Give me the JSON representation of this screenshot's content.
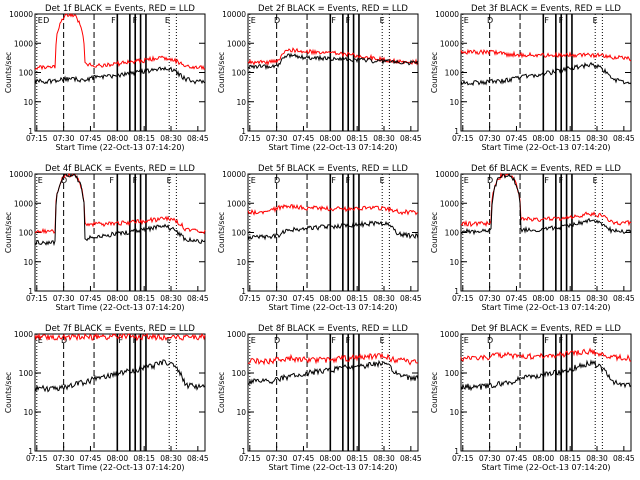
{
  "figure": {
    "ylabel": "Counts/sec",
    "xlabel": "Start Time (22-Oct-13 07:14:20)",
    "x_ticks": [
      "07:15",
      "07:30",
      "07:45",
      "08:00",
      "08:15",
      "08:30",
      "08:45"
    ],
    "y_ticks": [
      "1",
      "10",
      "100",
      "1000",
      "10000"
    ],
    "colors": {
      "events": "#000000",
      "lld": "#ff0000",
      "axes": "#000000"
    }
  },
  "chart_data": [
    {
      "type": "line",
      "title": "Det 1f BLACK = Events, RED = LLD",
      "markers": [
        {
          "label": "E",
          "x": "07:15"
        },
        {
          "label": "D",
          "x": "07:18"
        },
        {
          "label": "F",
          "x": "07:56"
        },
        {
          "label": "F",
          "x": "08:08"
        },
        {
          "label": "E",
          "x": "08:26"
        }
      ],
      "ylim": [
        1,
        10000
      ],
      "xlim": [
        "07:14",
        "08:49"
      ],
      "yscale": "log",
      "events_level": [
        50,
        50,
        50,
        60,
        60,
        55,
        70,
        75,
        80,
        90,
        100,
        110,
        130,
        150,
        110,
        60,
        50,
        48
      ],
      "lld_level": [
        150,
        150,
        150,
        9000,
        9000,
        200,
        170,
        180,
        200,
        220,
        240,
        260,
        300,
        320,
        270,
        160,
        150,
        145
      ]
    },
    {
      "type": "line",
      "title": "Det 2f BLACK = Events, RED = LLD",
      "markers": [
        {
          "label": "E",
          "x": "07:15"
        },
        {
          "label": "D",
          "x": "07:28"
        },
        {
          "label": "F",
          "x": "08:00"
        },
        {
          "label": "F",
          "x": "08:08"
        },
        {
          "label": "E",
          "x": "08:27"
        }
      ],
      "ylim": [
        1,
        10000
      ],
      "xlim": [
        "07:14",
        "08:49"
      ],
      "yscale": "log",
      "events_level": [
        160,
        160,
        160,
        180,
        380,
        350,
        330,
        320,
        300,
        290,
        280,
        270,
        260,
        250,
        240,
        230,
        220,
        210
      ],
      "lld_level": [
        230,
        230,
        230,
        250,
        600,
        560,
        520,
        500,
        480,
        460,
        420,
        380,
        340,
        300,
        260,
        240,
        230,
        230
      ]
    },
    {
      "type": "line",
      "title": "Det 3f BLACK = Events, RED = LLD",
      "markers": [
        {
          "label": "E",
          "x": "07:15"
        },
        {
          "label": "D",
          "x": "07:28"
        },
        {
          "label": "F",
          "x": "08:00"
        },
        {
          "label": "F",
          "x": "08:08"
        },
        {
          "label": "E",
          "x": "08:27"
        }
      ],
      "ylim": [
        1,
        10000
      ],
      "xlim": [
        "07:14",
        "08:49"
      ],
      "yscale": "log",
      "events_level": [
        45,
        45,
        45,
        50,
        50,
        60,
        70,
        80,
        90,
        100,
        120,
        140,
        160,
        200,
        140,
        60,
        50,
        48
      ],
      "lld_level": [
        500,
        500,
        500,
        500,
        450,
        420,
        410,
        400,
        400,
        400,
        400,
        400,
        400,
        400,
        380,
        350,
        320,
        300
      ]
    },
    {
      "type": "line",
      "title": "Det 4f BLACK = Events, RED = LLD",
      "markers": [
        {
          "label": "E",
          "x": "07:15"
        },
        {
          "label": "D",
          "x": "07:28"
        },
        {
          "label": "F",
          "x": "07:55"
        },
        {
          "label": "F",
          "x": "08:08"
        },
        {
          "label": "E",
          "x": "08:27"
        }
      ],
      "ylim": [
        1,
        10000
      ],
      "xlim": [
        "07:14",
        "08:49"
      ],
      "yscale": "log",
      "events_level": [
        45,
        45,
        45,
        9000,
        9000,
        60,
        70,
        80,
        90,
        100,
        110,
        130,
        150,
        170,
        120,
        60,
        50,
        48
      ],
      "lld_level": [
        110,
        110,
        110,
        9000,
        9000,
        200,
        190,
        200,
        210,
        220,
        230,
        250,
        280,
        300,
        260,
        140,
        120,
        110
      ]
    },
    {
      "type": "line",
      "title": "Det 5f BLACK = Events, RED = LLD",
      "markers": [
        {
          "label": "E",
          "x": "07:15"
        },
        {
          "label": "D",
          "x": "07:28"
        },
        {
          "label": "F",
          "x": "08:00"
        },
        {
          "label": "F",
          "x": "08:08"
        },
        {
          "label": "E",
          "x": "08:27"
        }
      ],
      "ylim": [
        1,
        10000
      ],
      "xlim": [
        "07:14",
        "08:49"
      ],
      "yscale": "log",
      "events_level": [
        70,
        70,
        70,
        80,
        120,
        130,
        140,
        150,
        160,
        170,
        180,
        190,
        200,
        220,
        190,
        90,
        80,
        75
      ],
      "lld_level": [
        500,
        500,
        500,
        700,
        800,
        760,
        700,
        680,
        660,
        650,
        650,
        660,
        680,
        700,
        650,
        520,
        500,
        480
      ]
    },
    {
      "type": "line",
      "title": "Det 6f BLACK = Events, RED = LLD",
      "markers": [
        {
          "label": "E",
          "x": "07:15"
        },
        {
          "label": "D",
          "x": "07:28"
        },
        {
          "label": "F",
          "x": "08:00"
        },
        {
          "label": "F",
          "x": "08:08"
        },
        {
          "label": "E",
          "x": "08:27"
        }
      ],
      "ylim": [
        1,
        10000
      ],
      "xlim": [
        "07:14",
        "08:49"
      ],
      "yscale": "log",
      "events_level": [
        110,
        110,
        110,
        120,
        9000,
        9000,
        130,
        120,
        130,
        140,
        150,
        180,
        220,
        260,
        200,
        120,
        110,
        110
      ],
      "lld_level": [
        200,
        200,
        200,
        220,
        9000,
        9000,
        300,
        290,
        290,
        290,
        300,
        320,
        400,
        450,
        380,
        230,
        220,
        220
      ]
    },
    {
      "type": "line",
      "title": "Det 7f BLACK = Events, RED = LLD",
      "markers": [
        {
          "label": "E",
          "x": "07:15"
        },
        {
          "label": "D",
          "x": "07:28"
        },
        {
          "label": "F",
          "x": "08:00"
        },
        {
          "label": "F",
          "x": "08:08"
        },
        {
          "label": "E",
          "x": "08:27"
        }
      ],
      "ylim": [
        1,
        1000
      ],
      "xlim": [
        "07:14",
        "08:49"
      ],
      "yscale": "log",
      "events_level": [
        40,
        40,
        40,
        45,
        50,
        60,
        70,
        80,
        90,
        110,
        120,
        140,
        160,
        200,
        150,
        50,
        45,
        42
      ],
      "lld_level": [
        850,
        850,
        850,
        850,
        850,
        850,
        850,
        850,
        850,
        850,
        850,
        850,
        850,
        850,
        850,
        850,
        850,
        850
      ]
    },
    {
      "type": "line",
      "title": "Det 8f BLACK = Events, RED = LLD",
      "markers": [
        {
          "label": "E",
          "x": "07:15"
        },
        {
          "label": "D",
          "x": "07:28"
        },
        {
          "label": "F",
          "x": "08:00"
        },
        {
          "label": "F",
          "x": "08:08"
        },
        {
          "label": "E",
          "x": "08:27"
        }
      ],
      "ylim": [
        1,
        1000
      ],
      "xlim": [
        "07:14",
        "08:49"
      ],
      "yscale": "log",
      "events_level": [
        60,
        60,
        60,
        70,
        80,
        90,
        100,
        110,
        120,
        130,
        140,
        150,
        160,
        180,
        150,
        90,
        80,
        75
      ],
      "lld_level": [
        200,
        200,
        200,
        220,
        250,
        230,
        220,
        220,
        220,
        230,
        240,
        250,
        260,
        280,
        250,
        210,
        200,
        200
      ]
    },
    {
      "type": "line",
      "title": "Det 9f BLACK = Events, RED = LLD",
      "markers": [
        {
          "label": "E",
          "x": "07:15"
        },
        {
          "label": "D",
          "x": "07:28"
        },
        {
          "label": "F",
          "x": "08:00"
        },
        {
          "label": "F",
          "x": "08:08"
        },
        {
          "label": "E",
          "x": "08:27"
        }
      ],
      "ylim": [
        1,
        1000
      ],
      "xlim": [
        "07:14",
        "08:49"
      ],
      "yscale": "log",
      "events_level": [
        45,
        45,
        45,
        50,
        55,
        60,
        70,
        80,
        90,
        100,
        110,
        130,
        150,
        190,
        140,
        60,
        50,
        48
      ],
      "lld_level": [
        240,
        240,
        240,
        260,
        300,
        280,
        270,
        270,
        280,
        290,
        300,
        320,
        340,
        360,
        320,
        260,
        250,
        240
      ]
    }
  ]
}
